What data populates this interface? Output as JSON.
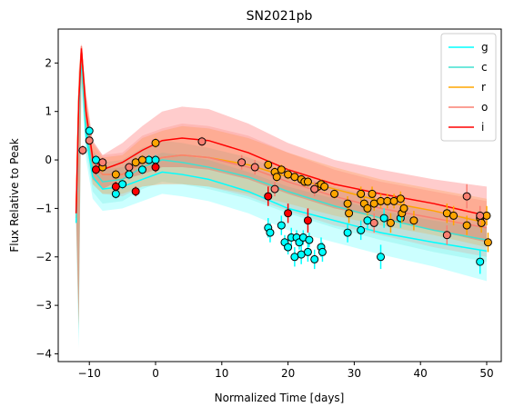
{
  "chart_data": {
    "type": "lightcurve",
    "title": "SN2021pb",
    "x_label": "Normalized Time [days]",
    "y_label": "Flux Relative to Peak",
    "xlim": [
      -14.7,
      52.2
    ],
    "ylim": [
      -4.16,
      2.7
    ],
    "xticks": [
      {
        "value": -10,
        "label": "−10"
      },
      0,
      10,
      20,
      30,
      40,
      50
    ],
    "yticks": [
      {
        "value": -4,
        "label": "−4"
      },
      {
        "value": -3,
        "label": "−3"
      },
      {
        "value": -2,
        "label": "−2"
      },
      {
        "value": -1,
        "label": "−1"
      },
      0,
      1,
      2
    ],
    "legend": "upper right",
    "x": [
      -12,
      -11.6,
      -11.2,
      -10.5,
      -9.5,
      -8,
      -5,
      -2,
      1,
      4,
      8,
      14,
      20,
      27,
      34,
      42,
      50
    ],
    "series": [
      {
        "name": "g",
        "color": "#00ffff",
        "values": [
          -1.3,
          1.0,
          2.1,
          0.5,
          -0.35,
          -0.6,
          -0.55,
          -0.4,
          -0.25,
          -0.3,
          -0.4,
          -0.65,
          -1.0,
          -1.25,
          -1.5,
          -1.7,
          -1.88
        ],
        "upper": [
          -1.2,
          1.5,
          2.2,
          0.9,
          0.05,
          -0.2,
          -0.15,
          0.0,
          0.15,
          0.1,
          0.0,
          -0.25,
          -0.55,
          -0.8,
          -1.05,
          -1.25,
          -1.4
        ],
        "lower": [
          -1.4,
          -3.9,
          1.5,
          0.0,
          -0.8,
          -1.05,
          -1.0,
          -0.85,
          -0.7,
          -0.75,
          -0.85,
          -1.1,
          -1.45,
          -1.7,
          -1.95,
          -2.2,
          -2.5
        ],
        "obs_x": [
          -10,
          -9,
          -6,
          -5,
          -4,
          -2,
          -1,
          0,
          17,
          17.3,
          19,
          19.5,
          20,
          20.5,
          21,
          21.3,
          21.7,
          22,
          22.3,
          23,
          23.2,
          24,
          25,
          25.2,
          29,
          31,
          32,
          34,
          34.5,
          37,
          49
        ],
        "obs_values": [
          0.6,
          0,
          -0.7,
          -0.5,
          -0.3,
          -0.2,
          0,
          0,
          -1.4,
          -1.5,
          -1.35,
          -1.7,
          -1.8,
          -1.6,
          -2.0,
          -1.6,
          -1.7,
          -1.95,
          -1.6,
          -1.9,
          -1.65,
          -2.05,
          -1.8,
          -1.9,
          -1.5,
          -1.45,
          -1.25,
          -2.0,
          -1.2,
          -1.2,
          -2.1
        ],
        "obs_errors": [
          0.1,
          0.1,
          0.1,
          0.1,
          0.1,
          0.1,
          0.1,
          0.1,
          0.2,
          0.2,
          0.2,
          0.15,
          0.15,
          0.2,
          0.2,
          0.15,
          0.15,
          0.2,
          0.15,
          0.2,
          0.15,
          0.2,
          0.2,
          0.2,
          0.2,
          0.2,
          0.2,
          0.25,
          0.2,
          0.2,
          0.25
        ]
      },
      {
        "name": "c",
        "color": "#40e0d0",
        "values": [
          -1.2,
          1.2,
          2.2,
          0.7,
          -0.2,
          -0.45,
          -0.4,
          -0.15,
          0.0,
          -0.05,
          -0.15,
          -0.35,
          -0.65,
          -0.95,
          -1.2,
          -1.45,
          -1.65
        ],
        "upper": [
          -1.1,
          1.7,
          2.3,
          1.1,
          0.2,
          -0.05,
          0.0,
          0.25,
          0.4,
          0.35,
          0.25,
          0.05,
          -0.25,
          -0.55,
          -0.8,
          -1.05,
          -1.25
        ],
        "lower": [
          -1.3,
          -3.7,
          1.6,
          0.2,
          -0.65,
          -0.9,
          -0.85,
          -0.6,
          -0.45,
          -0.5,
          -0.6,
          -0.8,
          -1.1,
          -1.4,
          -1.65,
          -1.9,
          -2.1
        ]
      },
      {
        "name": "r",
        "color": "#ffa500",
        "values": [
          -1.1,
          1.3,
          2.3,
          0.9,
          -0.05,
          -0.3,
          -0.3,
          -0.05,
          0.05,
          0.1,
          0.05,
          -0.1,
          -0.35,
          -0.6,
          -0.85,
          -1.05,
          -1.3
        ],
        "upper": [
          -1.0,
          1.8,
          2.35,
          1.3,
          0.35,
          0.05,
          0.1,
          0.45,
          0.6,
          0.7,
          0.65,
          0.45,
          0.15,
          -0.15,
          -0.4,
          -0.6,
          -0.8
        ],
        "lower": [
          -1.2,
          -3.5,
          1.7,
          0.4,
          -0.5,
          -0.7,
          -0.7,
          -0.55,
          -0.5,
          -0.5,
          -0.55,
          -0.7,
          -0.9,
          -1.15,
          -1.35,
          -1.55,
          -1.8
        ],
        "obs_x": [
          -8,
          -6,
          -3,
          -2,
          0,
          17,
          18,
          18.3,
          19,
          20,
          21,
          22,
          22.5,
          23,
          24,
          24.5,
          25,
          25.5,
          27,
          29,
          29.2,
          31,
          31.5,
          32,
          32.7,
          33,
          34,
          35,
          35.5,
          36,
          37,
          37.2,
          37.5,
          39,
          44,
          45,
          47,
          49,
          49.2,
          50,
          50.2
        ],
        "obs_values": [
          -0.15,
          -0.3,
          -0.05,
          0,
          0.35,
          -0.1,
          -0.25,
          -0.35,
          -0.2,
          -0.3,
          -0.35,
          -0.4,
          -0.45,
          -0.45,
          -0.6,
          -0.55,
          -0.5,
          -0.55,
          -0.7,
          -0.9,
          -1.1,
          -0.7,
          -0.9,
          -1.0,
          -0.7,
          -0.9,
          -0.85,
          -0.85,
          -1.3,
          -0.85,
          -0.8,
          -1.1,
          -1.0,
          -1.25,
          -1.1,
          -1.15,
          -1.35,
          -1.2,
          -1.3,
          -1.15,
          -1.7
        ],
        "obs_errors": [
          0.1,
          0.1,
          0.1,
          0.1,
          0.1,
          0.1,
          0.1,
          0.1,
          0.1,
          0.1,
          0.1,
          0.1,
          0.1,
          0.1,
          0.1,
          0.1,
          0.1,
          0.1,
          0.1,
          0.15,
          0.2,
          0.15,
          0.15,
          0.15,
          0.15,
          0.15,
          0.15,
          0.15,
          0.2,
          0.15,
          0.15,
          0.2,
          0.15,
          0.2,
          0.2,
          0.2,
          0.2,
          0.2,
          0.2,
          0.2,
          0.2
        ]
      },
      {
        "name": "o",
        "color": "#fa8072",
        "values": [
          -1.1,
          1.3,
          2.35,
          0.9,
          -0.05,
          -0.3,
          -0.3,
          -0.05,
          0.05,
          0.1,
          0.05,
          -0.15,
          -0.45,
          -0.75,
          -1.0,
          -1.2,
          -1.4
        ],
        "upper": [
          -1.0,
          1.9,
          2.4,
          1.3,
          0.4,
          0.1,
          0.15,
          0.5,
          0.65,
          0.75,
          0.7,
          0.5,
          0.15,
          -0.2,
          -0.45,
          -0.65,
          -0.85
        ],
        "lower": [
          -1.2,
          -3.5,
          1.7,
          0.4,
          -0.5,
          -0.7,
          -0.75,
          -0.55,
          -0.5,
          -0.5,
          -0.55,
          -0.75,
          -1.05,
          -1.35,
          -1.55,
          -1.8,
          -2.0
        ],
        "obs_x": [
          -11,
          -10,
          -8,
          -4,
          7,
          13,
          15,
          18,
          24,
          33,
          44,
          47,
          49
        ],
        "obs_values": [
          0.2,
          0.4,
          -0.05,
          -0.15,
          0.38,
          -0.05,
          -0.15,
          -0.6,
          -0.6,
          -1.3,
          -1.55,
          -0.75,
          -1.15
        ],
        "obs_errors": [
          0.1,
          0.1,
          0.1,
          0.1,
          0.1,
          0.15,
          0.15,
          0.15,
          0.15,
          0.2,
          0.2,
          0.25,
          0.2
        ]
      },
      {
        "name": "i",
        "color": "#ff0000",
        "values": [
          -1.1,
          1.2,
          2.3,
          1.0,
          0.05,
          -0.2,
          -0.05,
          0.2,
          0.4,
          0.45,
          0.4,
          0.15,
          -0.2,
          -0.5,
          -0.7,
          -0.9,
          -1.15
        ],
        "upper": [
          -1.0,
          1.8,
          2.4,
          1.4,
          0.4,
          0.1,
          0.35,
          0.7,
          1.0,
          1.1,
          1.05,
          0.75,
          0.35,
          0.0,
          -0.2,
          -0.4,
          -0.55
        ],
        "lower": [
          -1.2,
          -3.4,
          1.8,
          0.5,
          -0.4,
          -0.6,
          -0.4,
          -0.3,
          -0.15,
          -0.15,
          -0.2,
          -0.4,
          -0.7,
          -1.0,
          -1.2,
          -1.45,
          -1.7
        ],
        "obs_x": [
          -9,
          -6,
          -3,
          0,
          17,
          20,
          23
        ],
        "obs_values": [
          -0.2,
          -0.55,
          -0.65,
          -0.15,
          -0.75,
          -1.1,
          -1.25
        ],
        "obs_errors": [
          0.1,
          0.1,
          0.1,
          0.1,
          0.2,
          0.2,
          0.25
        ]
      }
    ]
  }
}
